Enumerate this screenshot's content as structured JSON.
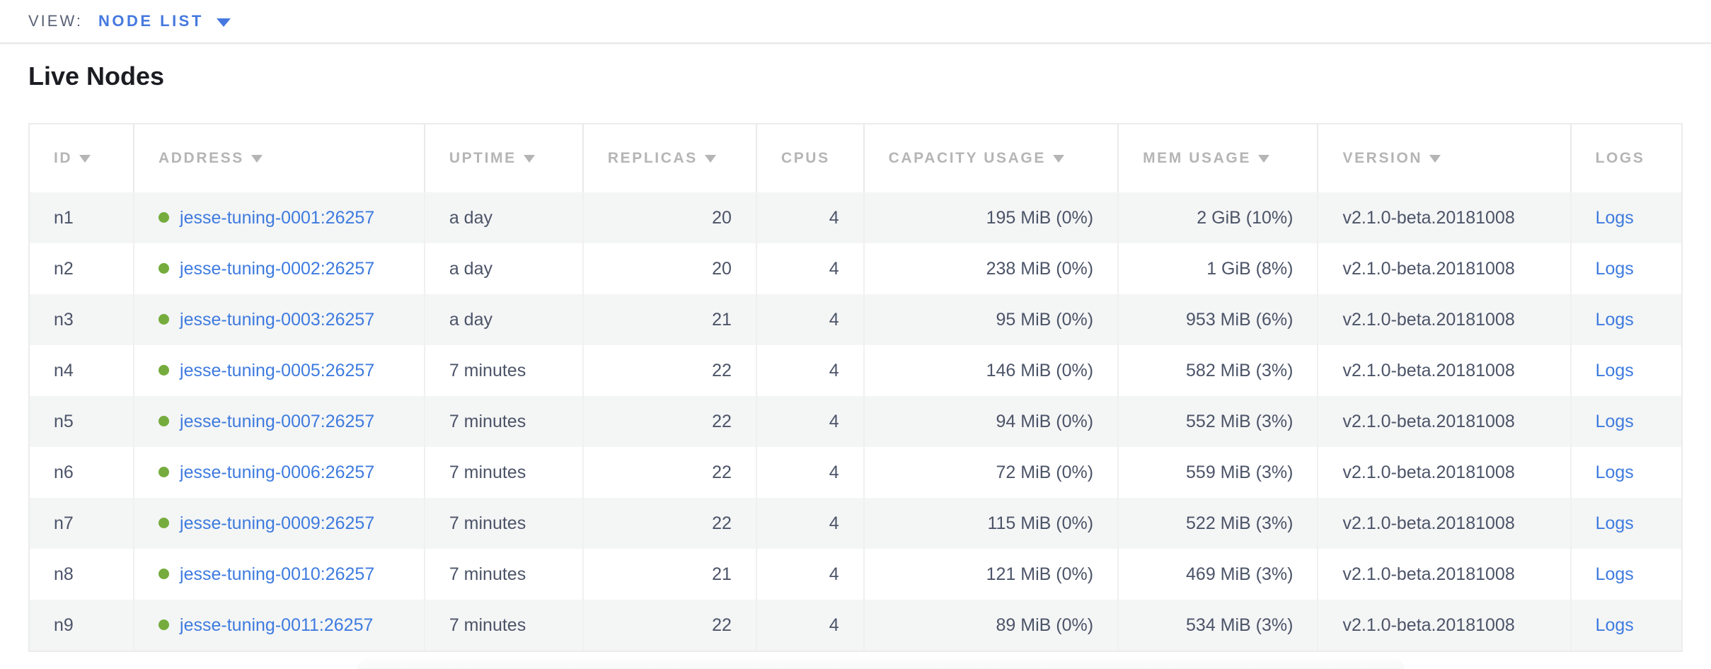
{
  "view_bar": {
    "label": "VIEW:",
    "selected": "NODE LIST"
  },
  "page": {
    "title": "Live Nodes"
  },
  "table": {
    "columns": [
      {
        "key": "id",
        "label": "ID",
        "sortable": true,
        "align": "left"
      },
      {
        "key": "address",
        "label": "ADDRESS",
        "sortable": true,
        "align": "left"
      },
      {
        "key": "uptime",
        "label": "UPTIME",
        "sortable": true,
        "align": "left"
      },
      {
        "key": "replicas",
        "label": "REPLICAS",
        "sortable": true,
        "align": "right"
      },
      {
        "key": "cpus",
        "label": "CPUS",
        "sortable": false,
        "align": "right"
      },
      {
        "key": "capacity",
        "label": "CAPACITY USAGE",
        "sortable": true,
        "align": "right"
      },
      {
        "key": "mem",
        "label": "MEM USAGE",
        "sortable": true,
        "align": "right"
      },
      {
        "key": "version",
        "label": "VERSION",
        "sortable": true,
        "align": "left"
      },
      {
        "key": "logs",
        "label": "LOGS",
        "sortable": false,
        "align": "left"
      }
    ],
    "rows": [
      {
        "id": "n1",
        "address": "jesse-tuning-0001:26257",
        "uptime": "a day",
        "replicas": "20",
        "cpus": "4",
        "capacity": "195 MiB (0%)",
        "mem": "2 GiB (10%)",
        "version": "v2.1.0-beta.20181008",
        "logs": "Logs"
      },
      {
        "id": "n2",
        "address": "jesse-tuning-0002:26257",
        "uptime": "a day",
        "replicas": "20",
        "cpus": "4",
        "capacity": "238 MiB (0%)",
        "mem": "1 GiB (8%)",
        "version": "v2.1.0-beta.20181008",
        "logs": "Logs"
      },
      {
        "id": "n3",
        "address": "jesse-tuning-0003:26257",
        "uptime": "a day",
        "replicas": "21",
        "cpus": "4",
        "capacity": "95 MiB (0%)",
        "mem": "953 MiB (6%)",
        "version": "v2.1.0-beta.20181008",
        "logs": "Logs"
      },
      {
        "id": "n4",
        "address": "jesse-tuning-0005:26257",
        "uptime": "7 minutes",
        "replicas": "22",
        "cpus": "4",
        "capacity": "146 MiB (0%)",
        "mem": "582 MiB (3%)",
        "version": "v2.1.0-beta.20181008",
        "logs": "Logs"
      },
      {
        "id": "n5",
        "address": "jesse-tuning-0007:26257",
        "uptime": "7 minutes",
        "replicas": "22",
        "cpus": "4",
        "capacity": "94 MiB (0%)",
        "mem": "552 MiB (3%)",
        "version": "v2.1.0-beta.20181008",
        "logs": "Logs"
      },
      {
        "id": "n6",
        "address": "jesse-tuning-0006:26257",
        "uptime": "7 minutes",
        "replicas": "22",
        "cpus": "4",
        "capacity": "72 MiB (0%)",
        "mem": "559 MiB (3%)",
        "version": "v2.1.0-beta.20181008",
        "logs": "Logs"
      },
      {
        "id": "n7",
        "address": "jesse-tuning-0009:26257",
        "uptime": "7 minutes",
        "replicas": "22",
        "cpus": "4",
        "capacity": "115 MiB (0%)",
        "mem": "522 MiB (3%)",
        "version": "v2.1.0-beta.20181008",
        "logs": "Logs"
      },
      {
        "id": "n8",
        "address": "jesse-tuning-0010:26257",
        "uptime": "7 minutes",
        "replicas": "21",
        "cpus": "4",
        "capacity": "121 MiB (0%)",
        "mem": "469 MiB (3%)",
        "version": "v2.1.0-beta.20181008",
        "logs": "Logs"
      },
      {
        "id": "n9",
        "address": "jesse-tuning-0011:26257",
        "uptime": "7 minutes",
        "replicas": "22",
        "cpus": "4",
        "capacity": "89 MiB (0%)",
        "mem": "534 MiB (3%)",
        "version": "v2.1.0-beta.20181008",
        "logs": "Logs"
      }
    ]
  },
  "icons": {
    "sort_arrow": "sort-desc-icon",
    "caret": "caret-down-icon",
    "live_dot": "node-live-status-icon"
  },
  "colors": {
    "link_blue": "#3e7bdf",
    "accent_blue": "#4579df",
    "live_green": "#75ac3d",
    "header_gray": "#b5b5b5",
    "text_slate": "#4c5468",
    "title_black": "#1b1d22",
    "row_alt_gray": "#f4f5f5",
    "border_gray": "#ececec"
  }
}
